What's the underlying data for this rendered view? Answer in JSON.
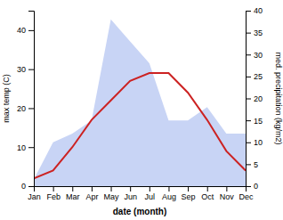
{
  "chart_data": {
    "type": "line",
    "categories": [
      "Jan",
      "Feb",
      "Mar",
      "Apr",
      "May",
      "Jun",
      "Jul",
      "Aug",
      "Sep",
      "Oct",
      "Nov",
      "Dec"
    ],
    "xlabel": "date (month)",
    "ylabel": "max temp (C)",
    "y2label": "med. precipitation (kg/m2)",
    "ylim": [
      0,
      45
    ],
    "yticks": [
      0,
      10,
      20,
      30,
      40
    ],
    "y2lim": [
      0,
      40
    ],
    "y2ticks": [
      0,
      5,
      10,
      15,
      20,
      25,
      30,
      35,
      40
    ],
    "series": [
      {
        "type": "line",
        "color": "#cc2222",
        "values": [
          2,
          4,
          10,
          17,
          22,
          27,
          29,
          29,
          24,
          17,
          9,
          4
        ]
      },
      {
        "type": "area",
        "color": "#c8d4f5",
        "axis": "y2",
        "values": [
          1.5,
          10,
          12,
          15,
          38,
          33,
          28,
          15,
          15,
          18,
          12,
          12
        ]
      }
    ]
  }
}
